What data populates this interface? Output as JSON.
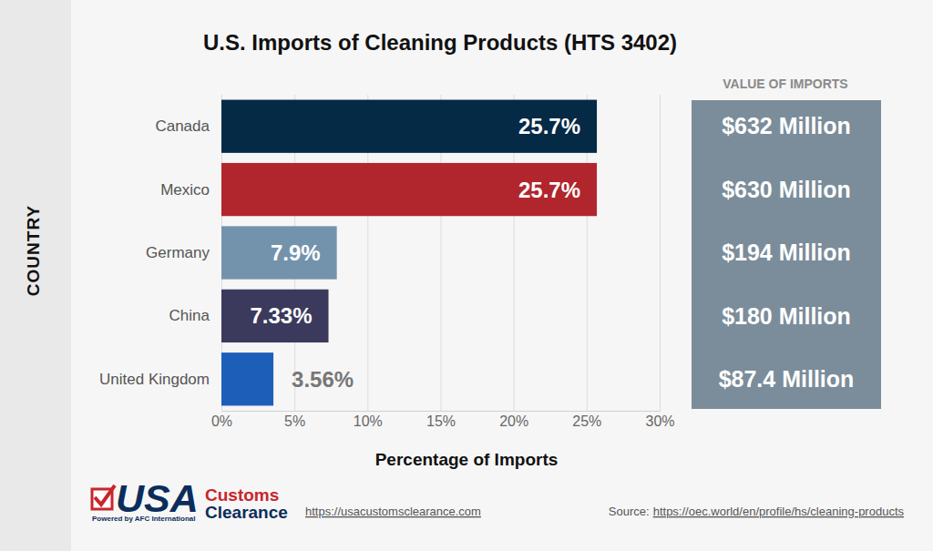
{
  "chart_data": {
    "type": "bar",
    "orientation": "horizontal",
    "title": "U.S. Imports of Cleaning Products (HTS 3402)",
    "y_label": "COUNTRY",
    "x_label": "Percentage of Imports",
    "categories": [
      "Canada",
      "Mexico",
      "Germany",
      "China",
      "United Kingdom"
    ],
    "values": [
      25.7,
      25.7,
      7.9,
      7.33,
      3.56
    ],
    "value_labels": [
      "25.7%",
      "25.7%",
      "7.9%",
      "7.33%",
      "3.56%"
    ],
    "colors": [
      "#052a45",
      "#b1262d",
      "#7393ad",
      "#3b3a5c",
      "#1d5fb8"
    ],
    "data_labels": true,
    "grid": true,
    "xlim": [
      0,
      30
    ],
    "xticks": [
      {
        "value": 0,
        "label": "0%"
      },
      {
        "value": 5,
        "label": "5%"
      },
      {
        "value": 10,
        "label": "10%"
      },
      {
        "value": 15,
        "label": "15%"
      },
      {
        "value": 20,
        "label": "20%"
      },
      {
        "value": 25,
        "label": "25%"
      },
      {
        "value": 30,
        "label": "30%"
      }
    ],
    "import_values_title": "VALUE OF IMPORTS",
    "import_values": [
      "$632 Million",
      "$630 Million",
      "$194 Million",
      "$180 Million",
      "$87.4 Million"
    ],
    "footer": {
      "logo": [
        "USA",
        "Customs",
        "Clearance"
      ],
      "tagline": "Powered by AFC International",
      "website": "https://usacustomsclearance.com",
      "source_label": "Source:",
      "source_url": "https://oec.world/en/profile/hs/cleaning-products"
    }
  }
}
